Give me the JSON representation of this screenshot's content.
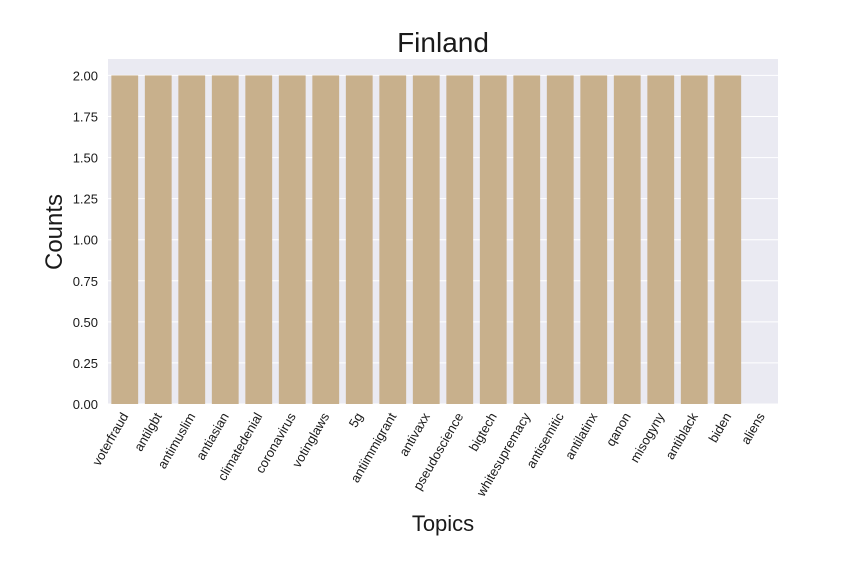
{
  "chart_data": {
    "type": "bar",
    "title": "Finland",
    "xlabel": "Topics",
    "ylabel": "Counts",
    "categories": [
      "voterfraud",
      "antilgbt",
      "antimuslim",
      "antiasian",
      "climatedenial",
      "coronavirus",
      "votinglaws",
      "5g",
      "antiimmigrant",
      "antivaxx",
      "pseudoscience",
      "bigtech",
      "whitesupremacy",
      "antisemitic",
      "antilatinx",
      "qanon",
      "misogyny",
      "antiblack",
      "biden",
      "aliens"
    ],
    "values": [
      2,
      2,
      2,
      2,
      2,
      2,
      2,
      2,
      2,
      2,
      2,
      2,
      2,
      2,
      2,
      2,
      2,
      2,
      2,
      0
    ],
    "ylim": [
      0,
      2.1
    ],
    "yticks": [
      "0.00",
      "0.25",
      "0.50",
      "0.75",
      "1.00",
      "1.25",
      "1.50",
      "1.75",
      "2.00"
    ],
    "grid": true,
    "colors": {
      "bar": "#c8b08c",
      "plot_background": "#eaeaf2",
      "grid": "#ffffff"
    }
  }
}
